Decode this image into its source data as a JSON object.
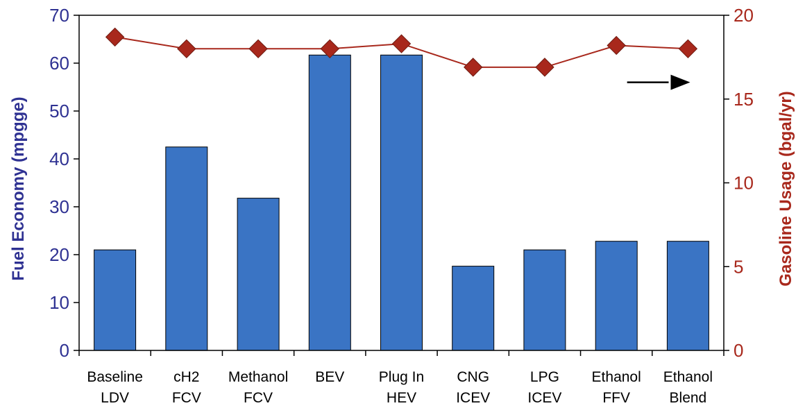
{
  "chart_data": {
    "type": "bar",
    "categories": [
      [
        "Baseline",
        "LDV"
      ],
      [
        "cH2",
        "FCV"
      ],
      [
        "Methanol",
        "FCV"
      ],
      [
        "BEV",
        ""
      ],
      [
        "Plug In",
        "HEV"
      ],
      [
        "CNG",
        "ICEV"
      ],
      [
        "LPG",
        "ICEV"
      ],
      [
        "Ethanol",
        "FFV"
      ],
      [
        "Ethanol",
        "Blend"
      ]
    ],
    "series": [
      {
        "type": "bar",
        "axis": "left",
        "color": "#3A74C4",
        "values": [
          21,
          42.5,
          31.8,
          61.7,
          61.7,
          17.6,
          21,
          22.8,
          22.8
        ]
      },
      {
        "type": "line",
        "axis": "right",
        "color": "#A8281C",
        "marker": "diamond",
        "values": [
          18.7,
          18.0,
          18.0,
          18.0,
          18.3,
          16.9,
          16.9,
          18.2,
          18.0
        ]
      }
    ],
    "ylabel_left": "Fuel Economy (mpgge)",
    "ylabel_right": "Gasoline Usage (bgal/yr)",
    "ylim_left": [
      0,
      70
    ],
    "yticks_left": [
      0,
      10,
      20,
      30,
      40,
      50,
      60,
      70
    ],
    "ylim_right": [
      0,
      20
    ],
    "yticks_right": [
      0,
      5,
      10,
      15,
      20
    ],
    "left_axis_color": "#2E3192",
    "right_axis_color": "#A8281C",
    "grid": false,
    "annotation": {
      "type": "arrow",
      "direction": "right",
      "color": "#000000"
    }
  }
}
